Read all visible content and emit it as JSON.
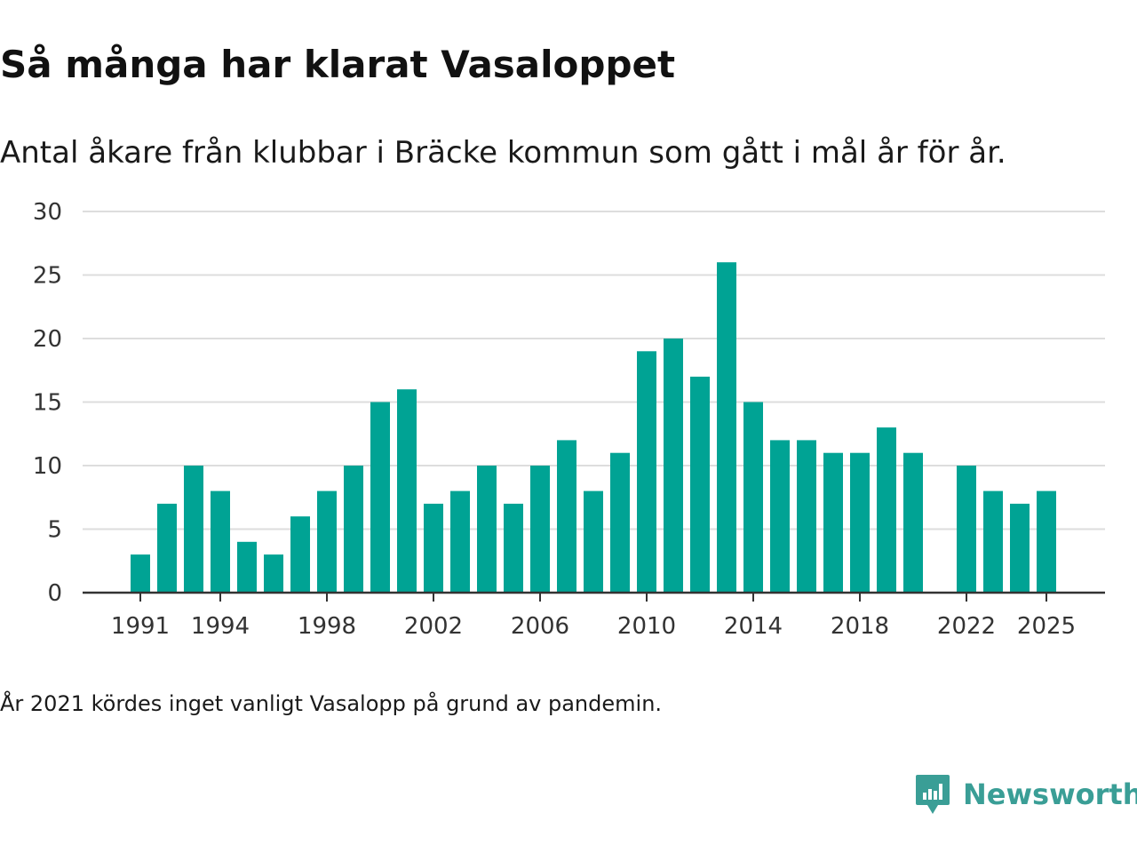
{
  "title": "Så många har klarat Vasaloppet",
  "subtitle": "Antal åkare från klubbar i Bräcke kommun som gått i mål år för år.",
  "note": "År 2021 kördes inget vanligt Vasalopp på grund av pandemin.",
  "brand": {
    "name": "Newsworthy",
    "icon": "chat-bars-icon",
    "color": "#3a9e96"
  },
  "colors": {
    "bar": "#00a394",
    "grid": "#dddddd",
    "axis": "#333333"
  },
  "chart_data": {
    "type": "bar",
    "title": "Så många har klarat Vasaloppet",
    "subtitle": "Antal åkare från klubbar i Bräcke kommun som gått i mål år för år.",
    "xlabel": "",
    "ylabel": "",
    "ylim": [
      0,
      30
    ],
    "yticks": [
      0,
      5,
      10,
      15,
      20,
      25,
      30
    ],
    "xticks": [
      1991,
      1994,
      1998,
      2002,
      2006,
      2010,
      2014,
      2018,
      2022,
      2025
    ],
    "xlim": [
      1988,
      2027
    ],
    "grid": true,
    "legend": "none",
    "x": [
      1991,
      1992,
      1993,
      1994,
      1995,
      1996,
      1997,
      1998,
      1999,
      2000,
      2001,
      2002,
      2003,
      2004,
      2005,
      2006,
      2007,
      2008,
      2009,
      2010,
      2011,
      2012,
      2013,
      2014,
      2015,
      2016,
      2017,
      2018,
      2019,
      2020,
      2022,
      2023,
      2024,
      2025
    ],
    "values": [
      3,
      7,
      10,
      8,
      4,
      3,
      6,
      8,
      10,
      15,
      16,
      7,
      8,
      10,
      7,
      10,
      12,
      8,
      11,
      19,
      20,
      17,
      26,
      15,
      12,
      12,
      11,
      11,
      13,
      11,
      10,
      8,
      7,
      8
    ]
  }
}
